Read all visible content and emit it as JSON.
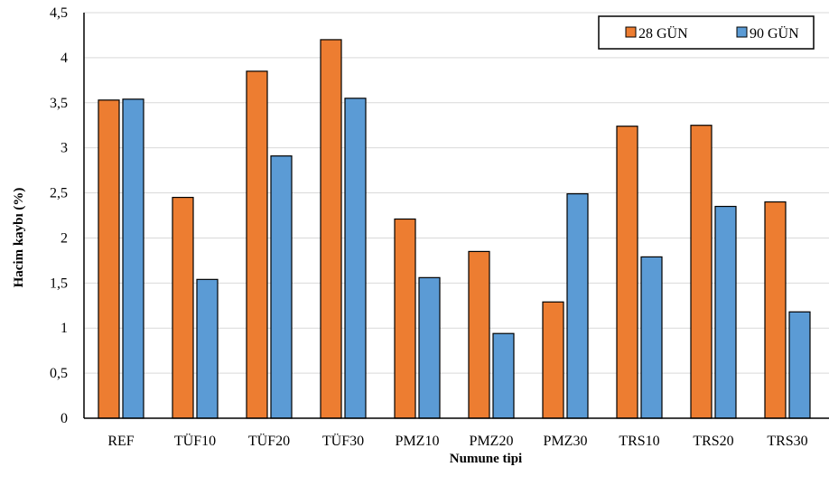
{
  "chart_data": {
    "type": "bar",
    "title": "",
    "xlabel": "Numune tipi",
    "ylabel": "Hacim kaybı (%)",
    "ylim": [
      0,
      4.5
    ],
    "yticks": [
      "0",
      "0,5",
      "1",
      "1,5",
      "2",
      "2,5",
      "3",
      "3,5",
      "4",
      "4,5"
    ],
    "grid": true,
    "legend_position": "top-right",
    "categories": [
      "REF",
      "TÜF10",
      "TÜF20",
      "TÜF30",
      "PMZ10",
      "PMZ20",
      "PMZ30",
      "TRS10",
      "TRS20",
      "TRS30"
    ],
    "series": [
      {
        "name": "28 GÜN",
        "color": "#ED7D31",
        "values": [
          3.53,
          2.45,
          3.85,
          4.2,
          2.21,
          1.85,
          1.29,
          3.24,
          3.25,
          2.4
        ]
      },
      {
        "name": "90 GÜN",
        "color": "#5B9BD5",
        "values": [
          3.54,
          1.54,
          2.91,
          3.55,
          1.56,
          0.94,
          2.49,
          1.79,
          2.35,
          1.18
        ]
      }
    ]
  }
}
